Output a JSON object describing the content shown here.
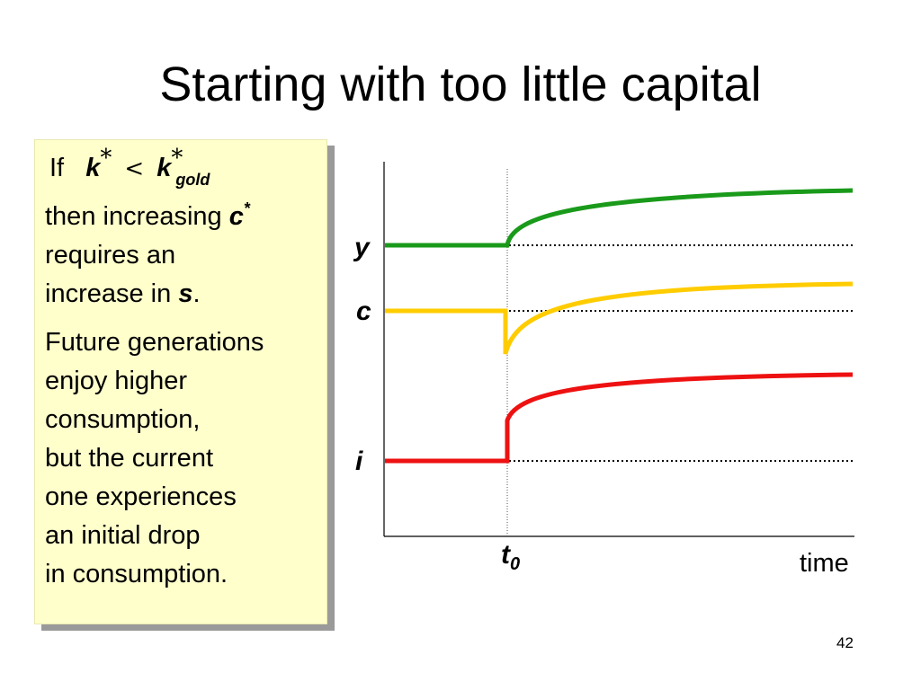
{
  "slide": {
    "title": "Starting with too little capital",
    "page_number": "42"
  },
  "note": {
    "if_word": "If",
    "k_symbol": "k",
    "star": "*",
    "less_than": "<",
    "k_gold_symbol": "k",
    "gold_subscript": "gold",
    "line2_text": "then increasing",
    "c_symbol": "c",
    "line3_text": "requires an",
    "line4_text": "increase in",
    "s_symbol": "s",
    "period": ".",
    "para2_lines": [
      "Future generations",
      "enjoy higher",
      "consumption,",
      "but the current",
      "one experiences",
      "an initial drop",
      "in consumption."
    ]
  },
  "diagram": {
    "labels": {
      "y": "y",
      "c": "c",
      "i": "i",
      "t0_base": "t",
      "t0_sub": "0",
      "time": "time"
    },
    "colors": {
      "y": "#1a9a1a",
      "c": "#ffcc00",
      "i": "#ee1111",
      "axis": "#000000",
      "guides": "#000000"
    }
  }
}
